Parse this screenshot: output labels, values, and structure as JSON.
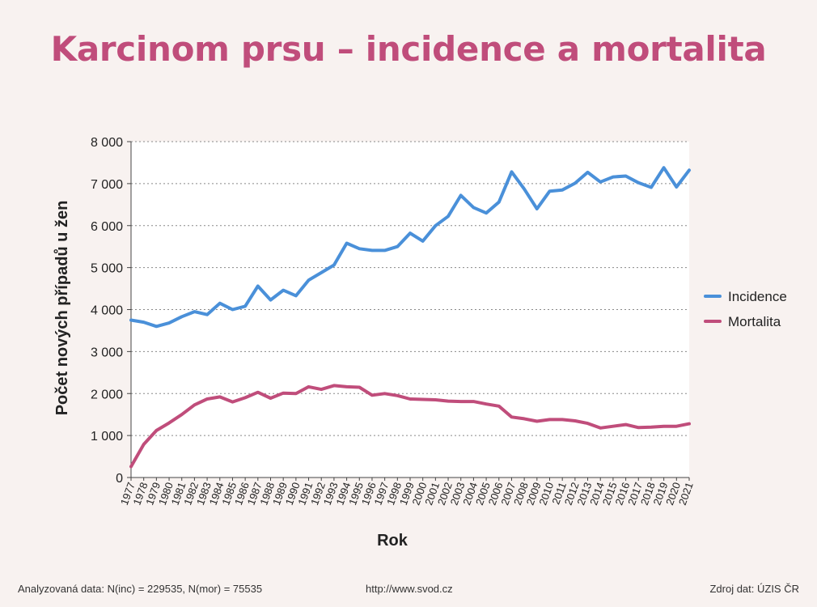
{
  "title": "Karcinom prsu – incidence a mortalita",
  "footer": {
    "left": "Analyzovaná data: N(inc) = 229535, N(mor) = 75535",
    "center": "http://www.svod.cz",
    "right": "Zdroj dat: ÚZIS ČR"
  },
  "chart_data": {
    "type": "line",
    "xlabel": "Rok",
    "ylabel": "Počet nových případů u žen",
    "ylim": [
      0,
      8000
    ],
    "yticks": [
      0,
      1000,
      2000,
      3000,
      4000,
      5000,
      6000,
      7000,
      8000
    ],
    "ytick_labels": [
      "0",
      "1 000",
      "2 000",
      "3 000",
      "4 000",
      "5 000",
      "6 000",
      "7 000",
      "8 000"
    ],
    "grid": "horizontal dotted",
    "legend": "right",
    "x": [
      1977,
      1978,
      1979,
      1980,
      1981,
      1982,
      1983,
      1984,
      1985,
      1986,
      1987,
      1988,
      1989,
      1990,
      1991,
      1992,
      1993,
      1994,
      1995,
      1996,
      1997,
      1998,
      1999,
      2000,
      2001,
      2002,
      2003,
      2004,
      2005,
      2006,
      2007,
      2008,
      2009,
      2010,
      2011,
      2012,
      2013,
      2014,
      2015,
      2016,
      2017,
      2018,
      2019,
      2020,
      2021
    ],
    "series": [
      {
        "name": "Incidence",
        "color": "#4a90d9",
        "values": [
          3750,
          3700,
          3600,
          3680,
          3830,
          3950,
          3880,
          4150,
          4000,
          4080,
          4560,
          4230,
          4460,
          4330,
          4700,
          4880,
          5060,
          5580,
          5450,
          5410,
          5410,
          5500,
          5820,
          5630,
          6000,
          6220,
          6720,
          6430,
          6300,
          6560,
          7280,
          6870,
          6400,
          6820,
          6850,
          7010,
          7270,
          7040,
          7160,
          7180,
          7020,
          6910,
          7380,
          6920,
          7320
        ]
      },
      {
        "name": "Mortalita",
        "color": "#c04d7b",
        "values": [
          260,
          790,
          1120,
          1300,
          1500,
          1730,
          1870,
          1920,
          1800,
          1900,
          2030,
          1890,
          2010,
          2000,
          2160,
          2100,
          2190,
          2160,
          2150,
          1960,
          2000,
          1950,
          1870,
          1860,
          1850,
          1820,
          1810,
          1810,
          1750,
          1700,
          1440,
          1400,
          1340,
          1380,
          1380,
          1350,
          1290,
          1180,
          1220,
          1260,
          1190,
          1200,
          1220,
          1220,
          1280
        ]
      }
    ]
  }
}
